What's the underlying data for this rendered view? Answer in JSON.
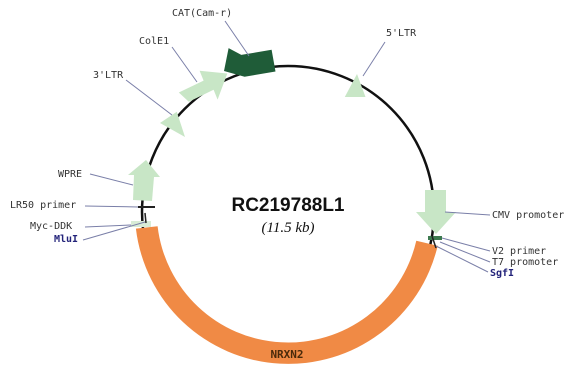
{
  "plasmid": {
    "name": "RC219788L1",
    "size": "(11.5 kb)"
  },
  "colors": {
    "backbone": "#111111",
    "light_feature": "#c8e6c6",
    "cam_r": "#1f5c38",
    "nrxn2": "#f08a45",
    "marker": "#d8ecd6"
  },
  "features": {
    "five_ltr": "5'LTR",
    "cmv_promoter": "CMV promoter",
    "v2_primer": "V2 primer",
    "t7_promoter": "T7 promoter",
    "sgfi": "SgfI",
    "nrxn2": "NRXN2",
    "mlui": "MluI",
    "myc_ddk": "Myc-DDK",
    "lr50_primer": "LR50 primer",
    "wpre": "WPRE",
    "three_ltr": "3'LTR",
    "cole1": "ColE1",
    "cat": "CAT(Cam-r)"
  }
}
